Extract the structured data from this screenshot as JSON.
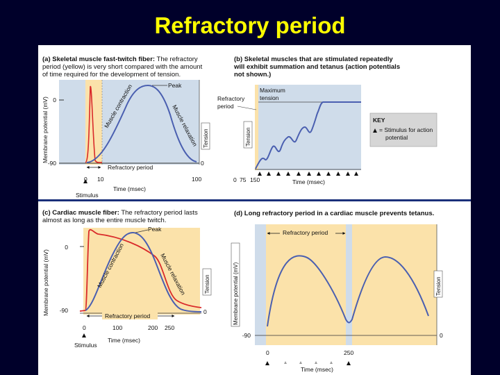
{
  "title": "Refractory period",
  "colors": {
    "background": "#00002a",
    "title": "#ffff00",
    "membrane_trace": "#d92a2a",
    "tension_trace": "#4a5fb0",
    "plot_blue": "#cfdcea",
    "plot_yellow": "#fbe2aa",
    "divider": "#1a2f7a"
  },
  "panel_a": {
    "heading": "(a) Skeletal muscle fast-twitch fiber:",
    "caption_lines": [
      "The refractory",
      "period (yellow) is very short compared with the amount",
      "of time required for the development of tension."
    ],
    "y_left_label": "Membrane potential (mV)",
    "y_right_label": "Tension",
    "tick_left_0": "0",
    "tick_left_neg90": "-90",
    "tick_right_0": "0",
    "x_ticks": [
      "0",
      "10",
      "100"
    ],
    "x_label": "Time (msec)",
    "stimulus_label": "Stimulus",
    "peak_label": "Peak",
    "contraction_label": "Muscle contraction",
    "relaxation_label": "Muscle relaxation",
    "refractory_label": "Refractory period"
  },
  "panel_b": {
    "heading_lines": [
      "(b) Skeletal muscles that are stimulated repeatedly",
      "will exhibit summation and tetanus (action potentials",
      "not shown.)"
    ],
    "refractory_label_lines": [
      "Refractory",
      "period"
    ],
    "max_tension_lines": [
      "Maximum",
      "tension"
    ],
    "y_label": "Tension",
    "x_ticks": [
      "0",
      "75",
      "150"
    ],
    "x_label": "Time (msec)",
    "key_title": "KEY",
    "key_text_lines": [
      "= Stimulus for action",
      "potential"
    ]
  },
  "panel_c": {
    "heading": "(c) Cardiac muscle fiber:",
    "caption_lines": [
      "The refractory period lasts",
      "almost as long as the entire muscle twitch."
    ],
    "y_left_label": "Membrane potential (mV)",
    "y_right_label": "Tension",
    "tick_left_0": "0",
    "tick_left_neg90": "-90",
    "tick_right_0": "0",
    "x_ticks": [
      "0",
      "100",
      "200",
      "250"
    ],
    "x_label": "Time (msec)",
    "stimulus_label": "Stimulus",
    "peak_label": "Peak",
    "contraction_label": "Muscle contraction",
    "relaxation_label": "Muscle relaxation",
    "refractory_label": "Refractory period"
  },
  "panel_d": {
    "heading": "(d) Long refractory period in a cardiac muscle prevents tetanus.",
    "refractory_label": "Refractory period",
    "y_left_label": "Membrane potential (mV)",
    "y_right_label": "Tension",
    "tick_left_neg90": "-90",
    "tick_right_0": "0",
    "x_ticks": [
      "0",
      "250"
    ],
    "x_label": "Time (msec)"
  }
}
